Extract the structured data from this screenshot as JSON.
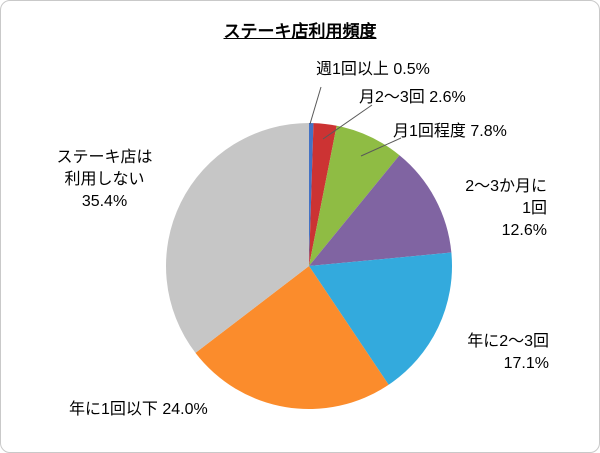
{
  "chart": {
    "title": "ステーキ店利用頻度"
  },
  "chart_data": {
    "type": "pie",
    "title": "ステーキ店利用頻度",
    "start_angle_deg": 0,
    "direction": "clockwise",
    "legend_position": "none",
    "slices": [
      {
        "label": "週1回以上",
        "value": 0.5,
        "color": "#4472c4"
      },
      {
        "label": "月2～3回",
        "value": 2.6,
        "color": "#cc3333"
      },
      {
        "label": "月1回程度",
        "value": 7.8,
        "color": "#8fbc44"
      },
      {
        "label": "2～3か月に1回",
        "value": 12.6,
        "color": "#8064a2"
      },
      {
        "label": "年に2～3回",
        "value": 17.1,
        "color": "#33aadd"
      },
      {
        "label": "年に1回以下",
        "value": 24.0,
        "color": "#fb8c2c"
      },
      {
        "label": "ステーキ店は利用しない",
        "value": 35.4,
        "color": "#c6c6c6"
      }
    ]
  },
  "labels": {
    "weekly": "週1回以上 0.5%",
    "monthly_2_3": "月2～3回 2.6%",
    "monthly_1": "月1回程度 7.8%",
    "quarterly": "2～3か月に\n1回\n12.6%",
    "yearly_2_3": "年に2～3回\n17.1%",
    "yearly_1_less": "年に1回以下 24.0%",
    "never": "ステーキ店は\n利用しない\n35.4%"
  }
}
